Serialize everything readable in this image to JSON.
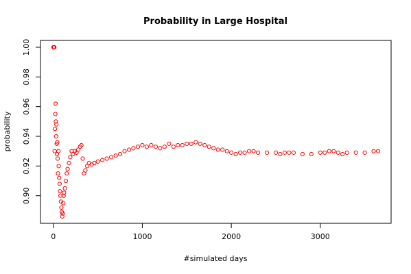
{
  "chart_data": {
    "type": "scatter",
    "title": "Probability in Large Hospital",
    "x_label": "#simulated days",
    "y_label": "probability",
    "color": "#ff0000",
    "x": [
      1,
      3,
      5,
      8,
      10,
      14,
      18,
      22,
      25,
      28,
      31,
      34,
      37,
      40,
      44,
      48,
      52,
      56,
      60,
      65,
      70,
      75,
      80,
      85,
      90,
      95,
      100,
      105,
      110,
      115,
      120,
      130,
      140,
      150,
      160,
      175,
      190,
      205,
      220,
      240,
      260,
      280,
      300,
      315,
      330,
      345,
      360,
      380,
      400,
      430,
      460,
      500,
      550,
      600,
      650,
      700,
      750,
      800,
      850,
      900,
      950,
      1000,
      1050,
      1100,
      1150,
      1200,
      1250,
      1300,
      1350,
      1400,
      1450,
      1500,
      1550,
      1600,
      1650,
      1700,
      1750,
      1800,
      1850,
      1900,
      1950,
      2000,
      2050,
      2100,
      2150,
      2200,
      2250,
      2300,
      2400,
      2500,
      2550,
      2600,
      2650,
      2700,
      2800,
      2900,
      3000,
      3050,
      3100,
      3150,
      3200,
      3250,
      3300,
      3400,
      3500,
      3600,
      3650
    ],
    "values": [
      1.0,
      1.0,
      1.0,
      1.0,
      1.0,
      0.93,
      0.945,
      0.955,
      0.962,
      0.95,
      0.94,
      0.948,
      0.935,
      0.928,
      0.936,
      0.925,
      0.915,
      0.93,
      0.92,
      0.912,
      0.908,
      0.903,
      0.9,
      0.896,
      0.892,
      0.889,
      0.886,
      0.888,
      0.895,
      0.9,
      0.902,
      0.905,
      0.91,
      0.915,
      0.918,
      0.922,
      0.926,
      0.93,
      0.928,
      0.93,
      0.929,
      0.931,
      0.933,
      0.934,
      0.925,
      0.915,
      0.917,
      0.92,
      0.922,
      0.921,
      0.922,
      0.923,
      0.924,
      0.925,
      0.926,
      0.927,
      0.928,
      0.93,
      0.931,
      0.932,
      0.933,
      0.934,
      0.933,
      0.934,
      0.933,
      0.932,
      0.933,
      0.935,
      0.933,
      0.934,
      0.934,
      0.935,
      0.935,
      0.936,
      0.935,
      0.934,
      0.933,
      0.932,
      0.931,
      0.931,
      0.93,
      0.929,
      0.928,
      0.929,
      0.929,
      0.93,
      0.93,
      0.929,
      0.929,
      0.929,
      0.928,
      0.929,
      0.929,
      0.929,
      0.928,
      0.928,
      0.929,
      0.929,
      0.93,
      0.93,
      0.929,
      0.928,
      0.929,
      0.929,
      0.929,
      0.93,
      0.93
    ],
    "xlim": [
      -145,
      3796
    ],
    "ylim": [
      0.8814,
      1.0046
    ],
    "xticks": [
      0,
      1000,
      2000,
      3000
    ],
    "yticks": [
      {
        "value": 0.9,
        "label": "0.90"
      },
      0.92,
      0.94,
      0.96,
      0.98,
      {
        "value": 1.0,
        "label": "1.00"
      }
    ]
  }
}
